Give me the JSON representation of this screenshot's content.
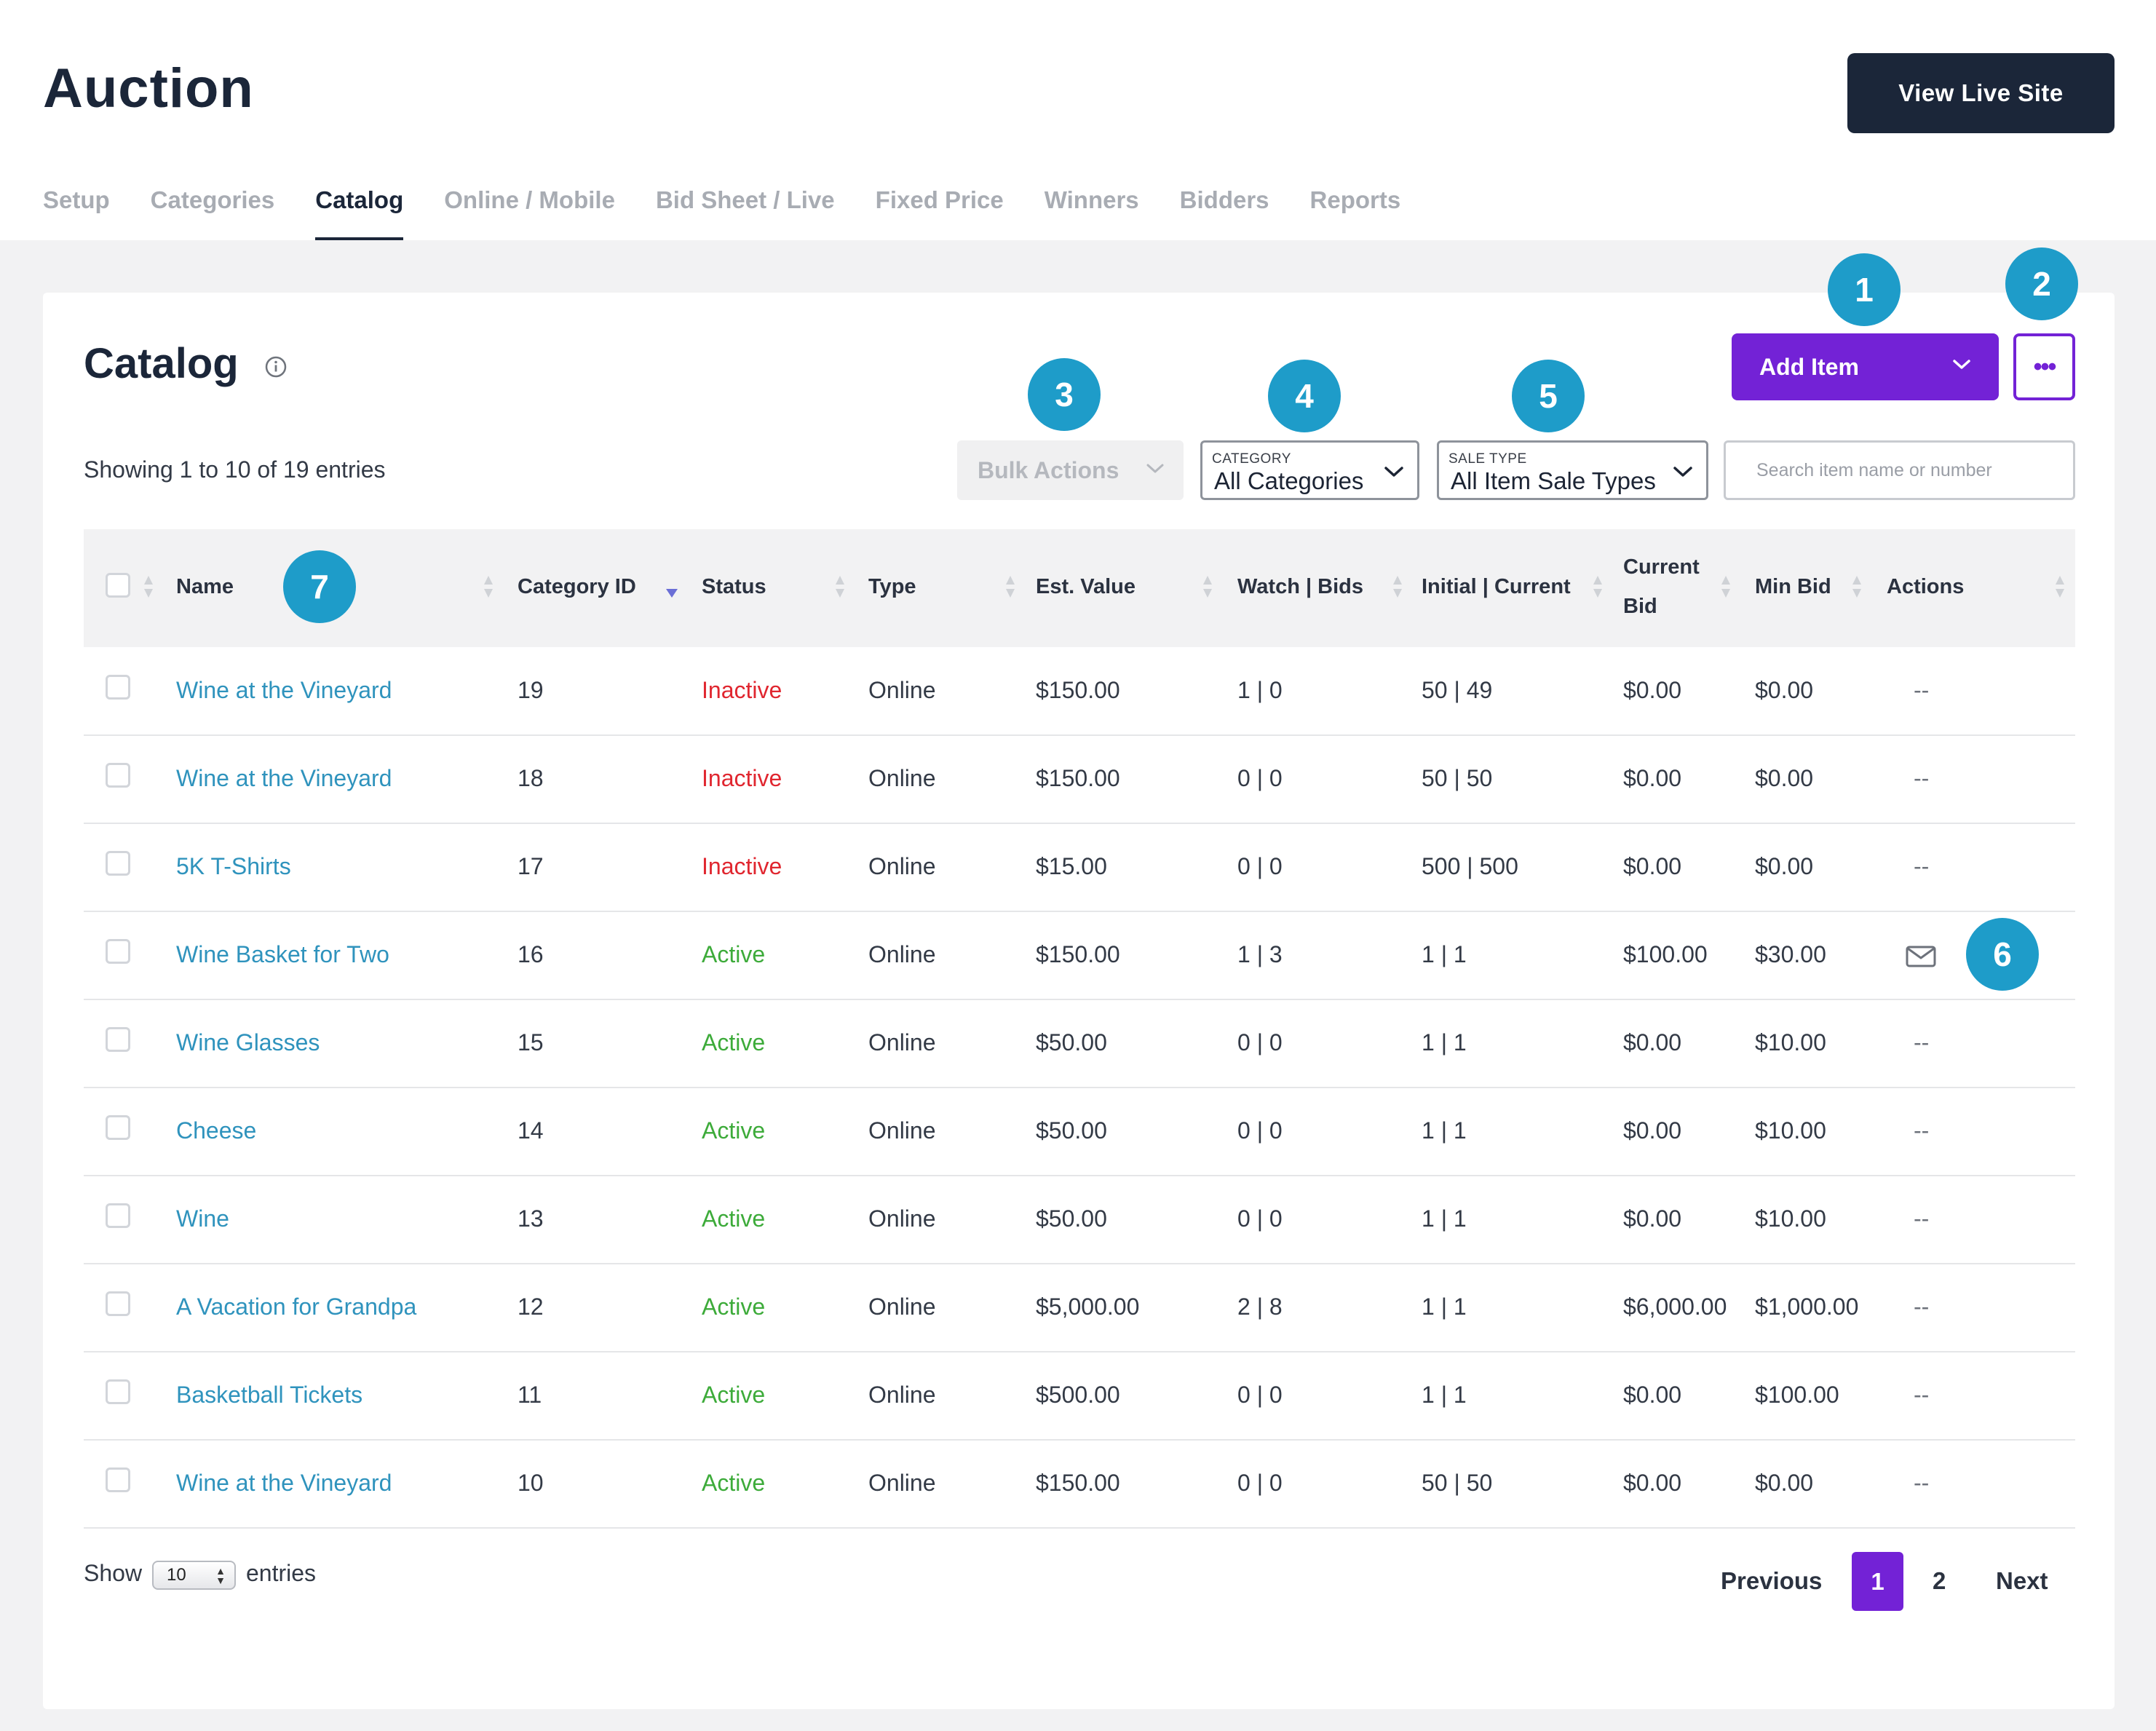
{
  "header": {
    "title": "Auction",
    "view_live_site": "View Live Site",
    "tabs": [
      {
        "label": "Setup",
        "active": false
      },
      {
        "label": "Categories",
        "active": false
      },
      {
        "label": "Catalog",
        "active": true
      },
      {
        "label": "Online / Mobile",
        "active": false
      },
      {
        "label": "Bid Sheet / Live",
        "active": false
      },
      {
        "label": "Fixed Price",
        "active": false
      },
      {
        "label": "Winners",
        "active": false
      },
      {
        "label": "Bidders",
        "active": false
      },
      {
        "label": "Reports",
        "active": false
      }
    ]
  },
  "catalog": {
    "title": "Catalog",
    "info_icon": "info-circle-icon",
    "add_item_label": "Add Item",
    "more_label": "•••",
    "showing_text": "Showing 1 to 10 of 19 entries",
    "bulk_actions_label": "Bulk Actions",
    "category_filter": {
      "label": "CATEGORY",
      "value": "All Categories"
    },
    "sale_type_filter": {
      "label": "SALE TYPE",
      "value": "All Item Sale Types"
    },
    "search_placeholder": "Search item name or number"
  },
  "table": {
    "columns": {
      "name": "Name",
      "category_id": "Category ID",
      "status": "Status",
      "type": "Type",
      "est_value": "Est. Value",
      "watch_bids": "Watch | Bids",
      "initial_current": "Initial | Current",
      "current_bid_line1": "Current",
      "current_bid_line2": "Bid",
      "min_bid": "Min Bid",
      "actions": "Actions"
    },
    "sorted_column": "category_id",
    "sort_direction": "descending",
    "rows": [
      {
        "name": "Wine at the Vineyard",
        "category_id": "19",
        "status": "Inactive",
        "type": "Online",
        "est_value": "$150.00",
        "watch_bids": "1 | 0",
        "initial_current": "50 | 49",
        "current_bid": "$0.00",
        "min_bid": "$0.00",
        "actions": "--"
      },
      {
        "name": "Wine at the Vineyard",
        "category_id": "18",
        "status": "Inactive",
        "type": "Online",
        "est_value": "$150.00",
        "watch_bids": "0 | 0",
        "initial_current": "50 | 50",
        "current_bid": "$0.00",
        "min_bid": "$0.00",
        "actions": "--"
      },
      {
        "name": "5K T-Shirts",
        "category_id": "17",
        "status": "Inactive",
        "type": "Online",
        "est_value": "$15.00",
        "watch_bids": "0 | 0",
        "initial_current": "500 | 500",
        "current_bid": "$0.00",
        "min_bid": "$0.00",
        "actions": "--"
      },
      {
        "name": "Wine Basket for Two",
        "category_id": "16",
        "status": "Active",
        "type": "Online",
        "est_value": "$150.00",
        "watch_bids": "1 | 3",
        "initial_current": "1 | 1",
        "current_bid": "$100.00",
        "min_bid": "$30.00",
        "actions": "mail-icon"
      },
      {
        "name": "Wine Glasses",
        "category_id": "15",
        "status": "Active",
        "type": "Online",
        "est_value": "$50.00",
        "watch_bids": "0 | 0",
        "initial_current": "1 | 1",
        "current_bid": "$0.00",
        "min_bid": "$10.00",
        "actions": "--"
      },
      {
        "name": "Cheese",
        "category_id": "14",
        "status": "Active",
        "type": "Online",
        "est_value": "$50.00",
        "watch_bids": "0 | 0",
        "initial_current": "1 | 1",
        "current_bid": "$0.00",
        "min_bid": "$10.00",
        "actions": "--"
      },
      {
        "name": "Wine",
        "category_id": "13",
        "status": "Active",
        "type": "Online",
        "est_value": "$50.00",
        "watch_bids": "0 | 0",
        "initial_current": "1 | 1",
        "current_bid": "$0.00",
        "min_bid": "$10.00",
        "actions": "--"
      },
      {
        "name": "A Vacation for Grandpa",
        "category_id": "12",
        "status": "Active",
        "type": "Online",
        "est_value": "$5,000.00",
        "watch_bids": "2 | 8",
        "initial_current": "1 | 1",
        "current_bid": "$6,000.00",
        "min_bid": "$1,000.00",
        "actions": "--"
      },
      {
        "name": "Basketball Tickets",
        "category_id": "11",
        "status": "Active",
        "type": "Online",
        "est_value": "$500.00",
        "watch_bids": "0 | 0",
        "initial_current": "1 | 1",
        "current_bid": "$0.00",
        "min_bid": "$100.00",
        "actions": "--"
      },
      {
        "name": "Wine at the Vineyard",
        "category_id": "10",
        "status": "Active",
        "type": "Online",
        "est_value": "$150.00",
        "watch_bids": "0 | 0",
        "initial_current": "50 | 50",
        "current_bid": "$0.00",
        "min_bid": "$0.00",
        "actions": "--"
      }
    ]
  },
  "footer": {
    "show_label": "Show",
    "page_size": "10",
    "entries_label": "entries",
    "previous": "Previous",
    "pages": [
      "1",
      "2"
    ],
    "current_page": "1",
    "next": "Next"
  },
  "callouts": [
    "1",
    "2",
    "3",
    "4",
    "5",
    "6",
    "7"
  ],
  "colors": {
    "brand_purple": "#7322d6",
    "navy": "#1b2639",
    "callout_blue": "#1e9cc9",
    "link_blue": "#2f93bd",
    "inactive_red": "#e0262f",
    "active_green": "#3dab3a"
  }
}
